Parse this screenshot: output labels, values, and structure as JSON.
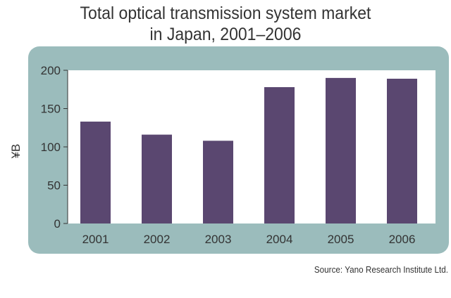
{
  "title_lines": [
    "Total optical transmission system market",
    "in Japan, 2001–2006"
  ],
  "source": "Source: Yano Research Institute Ltd.",
  "colors": {
    "panel": "#9bbcbc",
    "plot_bg": "#ffffff",
    "bar": "#5a4770",
    "text": "#333333"
  },
  "chart_data": {
    "type": "bar",
    "title": "Total optical transmission system market in Japan, 2001–2006",
    "xlabel": "",
    "ylabel": "¥B",
    "categories": [
      "2001",
      "2002",
      "2003",
      "2004",
      "2005",
      "2006"
    ],
    "values": [
      133,
      116,
      108,
      178,
      190,
      189
    ],
    "ylim": [
      0,
      200
    ],
    "yticks": [
      0,
      50,
      100,
      150,
      200
    ],
    "grid": false,
    "legend": "none"
  }
}
